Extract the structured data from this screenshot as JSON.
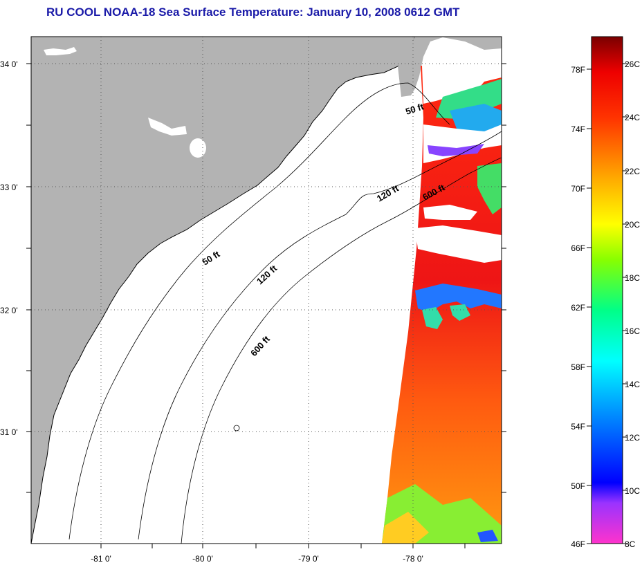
{
  "title": "RU COOL  NOAA-18  Sea Surface Temperature:  January 10, 2008 0612 GMT",
  "map": {
    "lat_labels": [
      "34 0'",
      "33 0'",
      "32 0'",
      "31 0'"
    ],
    "lon_labels": [
      "-81 0'",
      "-80 0'",
      "-79 0'",
      "-78 0'"
    ],
    "contours": [
      "50 ft",
      "120 ft",
      "600 ft"
    ],
    "colors": {
      "land": "#b3b3b3",
      "ocean_nodata": "#ffffff",
      "coast": "#000000"
    }
  },
  "colorbar": {
    "fahrenheit_labels": [
      "78F",
      "74F",
      "70F",
      "66F",
      "62F",
      "58F",
      "54F",
      "50F",
      "46F"
    ],
    "celsius_labels": [
      "26C",
      "24C",
      "22C",
      "20C",
      "18C",
      "16C",
      "14C",
      "12C",
      "10C",
      "8C"
    ],
    "range_c": [
      8,
      27
    ]
  }
}
